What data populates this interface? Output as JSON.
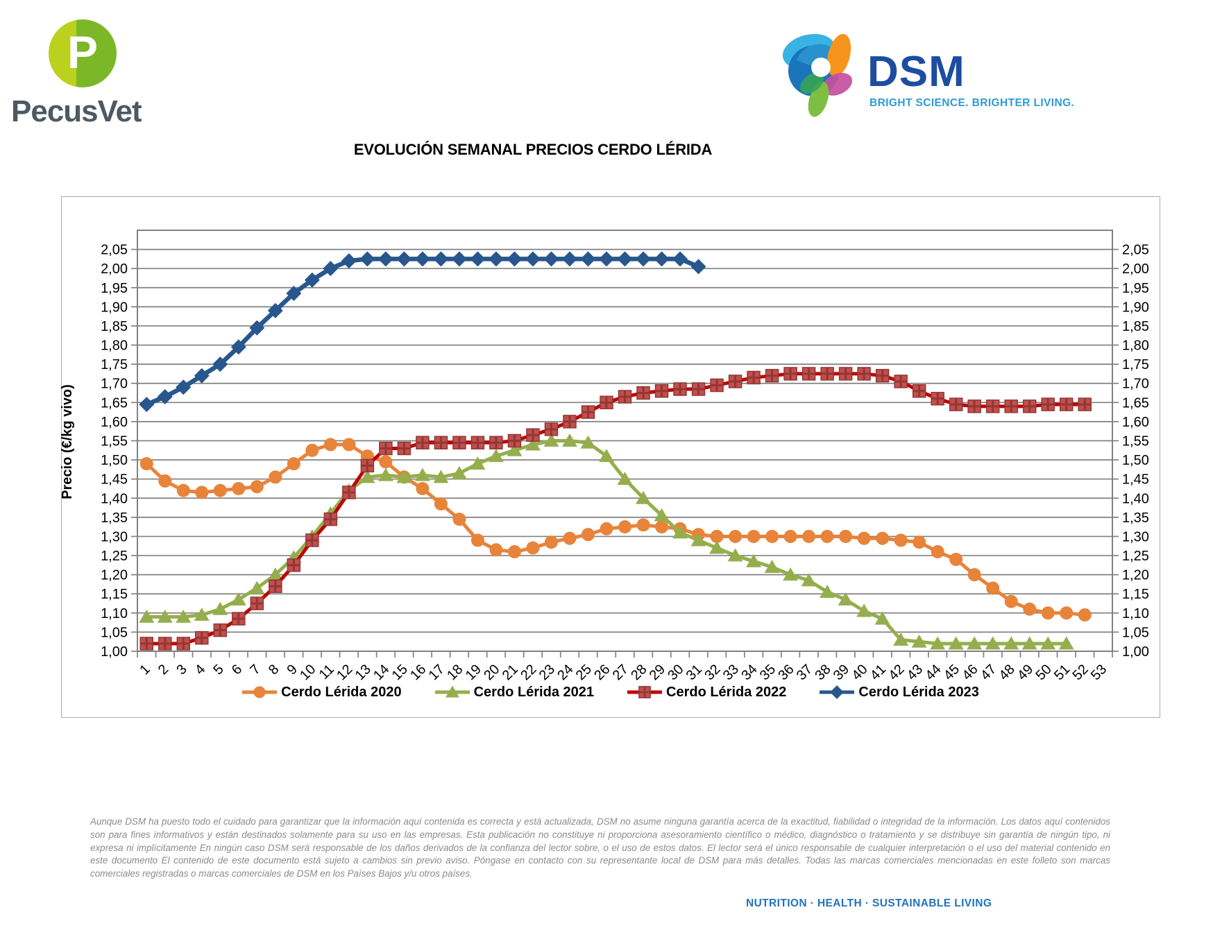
{
  "header": {
    "pecusvet": {
      "monogram": "P",
      "name": "PecusVet"
    },
    "dsm": {
      "name": "DSM",
      "tagline": "BRIGHT SCIENCE. BRIGHTER LIVING."
    }
  },
  "title": "EVOLUCIÓN SEMANAL PRECIOS CERDO LÉRIDA",
  "chart_data": {
    "type": "line",
    "title": "EVOLUCIÓN SEMANAL PRECIOS CERDO LÉRIDA",
    "xlabel": "",
    "ylabel": "Precio (€/kg vivo)",
    "weeks": 53,
    "x_tick_labels_note": "weeks 1 to 53",
    "ylim": [
      1.0,
      2.1
    ],
    "yticks": [
      1.0,
      2.05
    ],
    "ystep": 0.05,
    "decimal_separator": ",",
    "grid": true,
    "legend_position": "bottom",
    "gridline_color": "#808080",
    "series": [
      {
        "id": "cerdo-lerida-2020",
        "name": "Cerdo Lérida 2020",
        "marker": "circle",
        "line_color": "#e8833a",
        "marker_color": "#e8833a",
        "line_width": 5,
        "values": [
          1.49,
          1.445,
          1.42,
          1.415,
          1.42,
          1.425,
          1.43,
          1.455,
          1.49,
          1.525,
          1.54,
          1.54,
          1.51,
          1.495,
          1.455,
          1.425,
          1.385,
          1.345,
          1.29,
          1.265,
          1.26,
          1.27,
          1.285,
          1.295,
          1.305,
          1.32,
          1.325,
          1.33,
          1.325,
          1.32,
          1.305,
          1.3,
          1.3,
          1.3,
          1.3,
          1.3,
          1.3,
          1.3,
          1.3,
          1.295,
          1.295,
          1.29,
          1.285,
          1.26,
          1.24,
          1.2,
          1.165,
          1.13,
          1.11,
          1.1,
          1.1,
          1.095
        ]
      },
      {
        "id": "cerdo-lerida-2021",
        "name": "Cerdo Lérida 2021",
        "marker": "triangle",
        "line_color": "#95ae4d",
        "marker_color": "#95ae4d",
        "line_width": 5,
        "values": [
          1.09,
          1.09,
          1.09,
          1.095,
          1.11,
          1.135,
          1.165,
          1.2,
          1.245,
          1.3,
          1.36,
          1.42,
          1.455,
          1.46,
          1.455,
          1.46,
          1.455,
          1.465,
          1.49,
          1.51,
          1.525,
          1.54,
          1.55,
          1.55,
          1.545,
          1.51,
          1.45,
          1.4,
          1.355,
          1.31,
          1.29,
          1.27,
          1.25,
          1.235,
          1.22,
          1.2,
          1.185,
          1.155,
          1.135,
          1.105,
          1.085,
          1.03,
          1.025,
          1.02,
          1.02,
          1.02,
          1.02,
          1.02,
          1.02,
          1.02,
          1.02
        ]
      },
      {
        "id": "cerdo-lerida-2022",
        "name": "Cerdo Lérida 2022",
        "marker": "square-plus",
        "line_color": "#c00000",
        "marker_color": "#c0504d",
        "marker_accent": "#943634",
        "line_width": 5,
        "values": [
          1.02,
          1.02,
          1.02,
          1.035,
          1.055,
          1.085,
          1.125,
          1.17,
          1.225,
          1.29,
          1.345,
          1.415,
          1.485,
          1.53,
          1.53,
          1.545,
          1.545,
          1.545,
          1.545,
          1.545,
          1.55,
          1.565,
          1.58,
          1.6,
          1.625,
          1.65,
          1.665,
          1.675,
          1.68,
          1.685,
          1.685,
          1.695,
          1.705,
          1.715,
          1.72,
          1.725,
          1.725,
          1.725,
          1.725,
          1.725,
          1.72,
          1.705,
          1.68,
          1.66,
          1.645,
          1.64,
          1.64,
          1.64,
          1.64,
          1.645,
          1.645,
          1.645
        ]
      },
      {
        "id": "cerdo-lerida-2023",
        "name": "Cerdo Lérida 2023",
        "marker": "diamond",
        "line_color": "#28578e",
        "marker_color": "#28578e",
        "line_width": 6.5,
        "values": [
          1.645,
          1.665,
          1.69,
          1.72,
          1.75,
          1.795,
          1.845,
          1.89,
          1.935,
          1.97,
          2.0,
          2.02,
          2.025,
          2.025,
          2.025,
          2.025,
          2.025,
          2.025,
          2.025,
          2.025,
          2.025,
          2.025,
          2.025,
          2.025,
          2.025,
          2.025,
          2.025,
          2.025,
          2.025,
          2.025,
          2.005
        ]
      }
    ]
  },
  "footer": {
    "disclaimer": "Aunque DSM ha puesto todo el cuidado para garantizar que la información aquí contenida es correcta y está actualizada, DSM no asume ninguna garantía acerca de la exactitud, fiabilidad o integridad de la información. Los datos aquí contenidos son para fines informativos y están destinados solamente para su uso en las empresas. Esta publicación no constituye ni proporciona asesoramiento científico o médico, diagnóstico o tratamiento y se distribuye sin garantía de ningún tipo, ni expresa ni implícitamente En ningún caso DSM será responsable de los daños derivados de la confianza del lector sobre, o el uso de estos datos. El lector será el único responsable de cualquier interpretación o el uso del material contenido en este documento El contenido de este documento está sujeto a cambios sin previo aviso. Póngase en contacto con su representante local de DSM para más detalles. Todas las marcas comerciales mencionadas en este folleto son marcas comerciales registradas o marcas comerciales de DSM en los Países Bajos y/u otros países.",
    "slogan": "NUTRITION · HEALTH · SUSTAINABLE LIVING"
  }
}
